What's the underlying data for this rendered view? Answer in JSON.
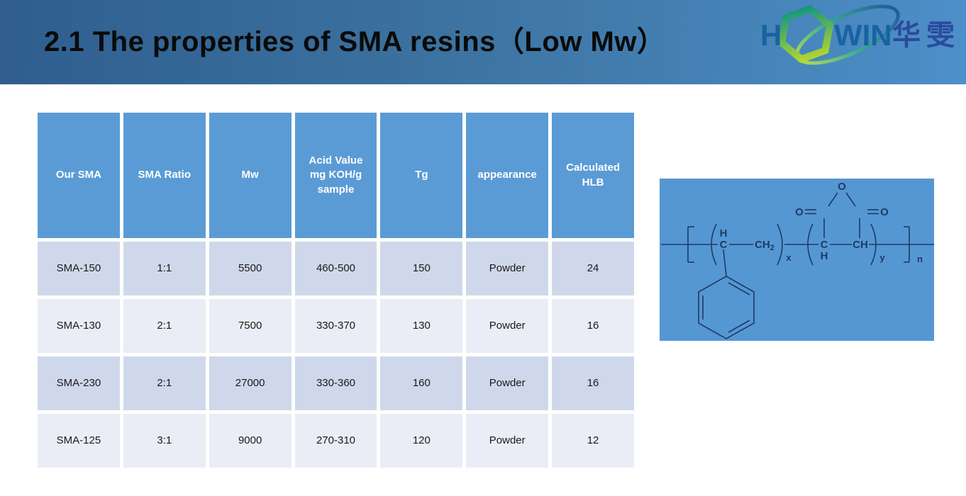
{
  "slide": {
    "title": "2.1 The properties of SMA resins（Low Mw）"
  },
  "logo": {
    "h": "H",
    "win": "WIN",
    "cn": "华雯"
  },
  "table": {
    "headers": [
      "Our SMA",
      "SMA Ratio",
      "Mw",
      "Acid Value\nmg KOH/g\nsample",
      "Tg",
      "appearance",
      "Calculated\nHLB"
    ],
    "rows": [
      [
        "SMA-150",
        "1:1",
        "5500",
        "460-500",
        "150",
        "Powder",
        "24"
      ],
      [
        "SMA-130",
        "2:1",
        "7500",
        "330-370",
        "130",
        "Powder",
        "16"
      ],
      [
        "SMA-230",
        "2:1",
        "27000",
        "330-360",
        "160",
        "Powder",
        "16"
      ],
      [
        "SMA-125",
        "3:1",
        "9000",
        "270-310",
        "120",
        "Powder",
        "12"
      ]
    ]
  },
  "structure": {
    "description": "Styrene-maleic anhydride copolymer repeat unit",
    "labels": {
      "h_top": "H",
      "c_left": "C",
      "ch2_main": "CH",
      "ch2_sub": "2",
      "c_right": "C",
      "h_bottom": "H",
      "ch": "CH",
      "o_top": "O",
      "o_left": "O",
      "o_right": "O",
      "sub_x": "x",
      "sub_y": "y",
      "sub_n": "n"
    }
  },
  "colors": {
    "banner_left": "#2F5E8E",
    "banner_right": "#4D8FC9",
    "table_header": "#5B9BD5",
    "row_dark": "#CFD8EA",
    "row_light": "#EAEDF5",
    "panel_blue": "#5597D3",
    "structure_ink": "#1E3A66",
    "logo_letters": "#1763A3",
    "logo_cn": "#2B4A9E"
  }
}
